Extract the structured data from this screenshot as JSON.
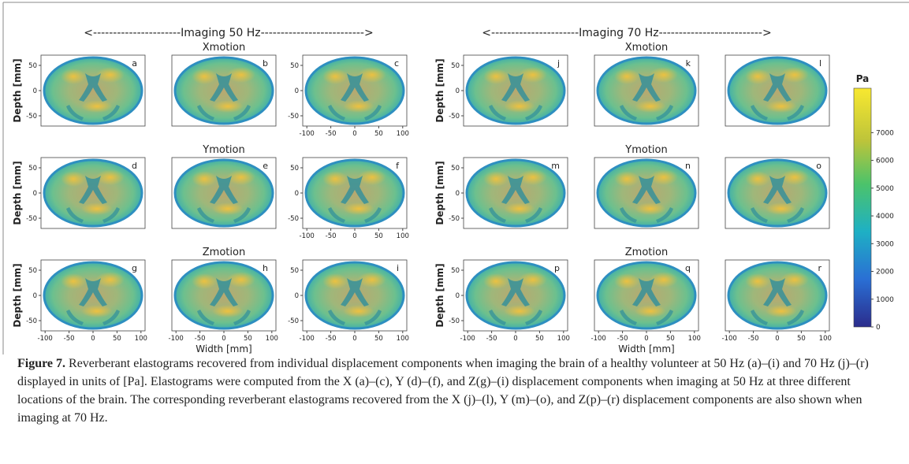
{
  "figure": {
    "header_groups": [
      {
        "label": "<----------------------Imaging 50 Hz-------------------------->"
      },
      {
        "label": "<----------------------Imaging 70 Hz-------------------------->"
      }
    ],
    "rows": [
      {
        "title": "Xmotion",
        "panels": [
          "a",
          "b",
          "c",
          "j",
          "k",
          "l"
        ]
      },
      {
        "title": "Ymotion",
        "panels": [
          "d",
          "e",
          "f",
          "m",
          "n",
          "o"
        ]
      },
      {
        "title": "Zmotion",
        "panels": [
          "g",
          "h",
          "i",
          "p",
          "q",
          "r"
        ]
      }
    ],
    "y_axis": {
      "label": "Depth [mm]",
      "ticks": [
        50,
        0,
        -50
      ]
    },
    "x_axis": {
      "label": "Width [mm]",
      "ticks": [
        -100,
        -50,
        0,
        50,
        100
      ]
    },
    "colorbar": {
      "label": "Pa",
      "ticks": [
        0,
        1000,
        2000,
        3000,
        4000,
        5000,
        6000,
        7000
      ]
    },
    "caption": {
      "label": "Figure 7.",
      "text": "Reverberant elastograms recovered from individual displacement components when imaging the brain of a healthy volunteer at 50 Hz (a)–(i) and 70 Hz (j)–(r) displayed in units of [Pa]. Elastograms were computed from the X (a)–(c), Y (d)–(f), and Z(g)–(i) displacement components when imaging at 50 Hz at three different locations of the brain. The corresponding reverberant elastograms recovered from the X (j)–(l), Y (m)–(o), and Z(p)–(r) displacement components are also shown when imaging at 70 Hz."
    }
  }
}
